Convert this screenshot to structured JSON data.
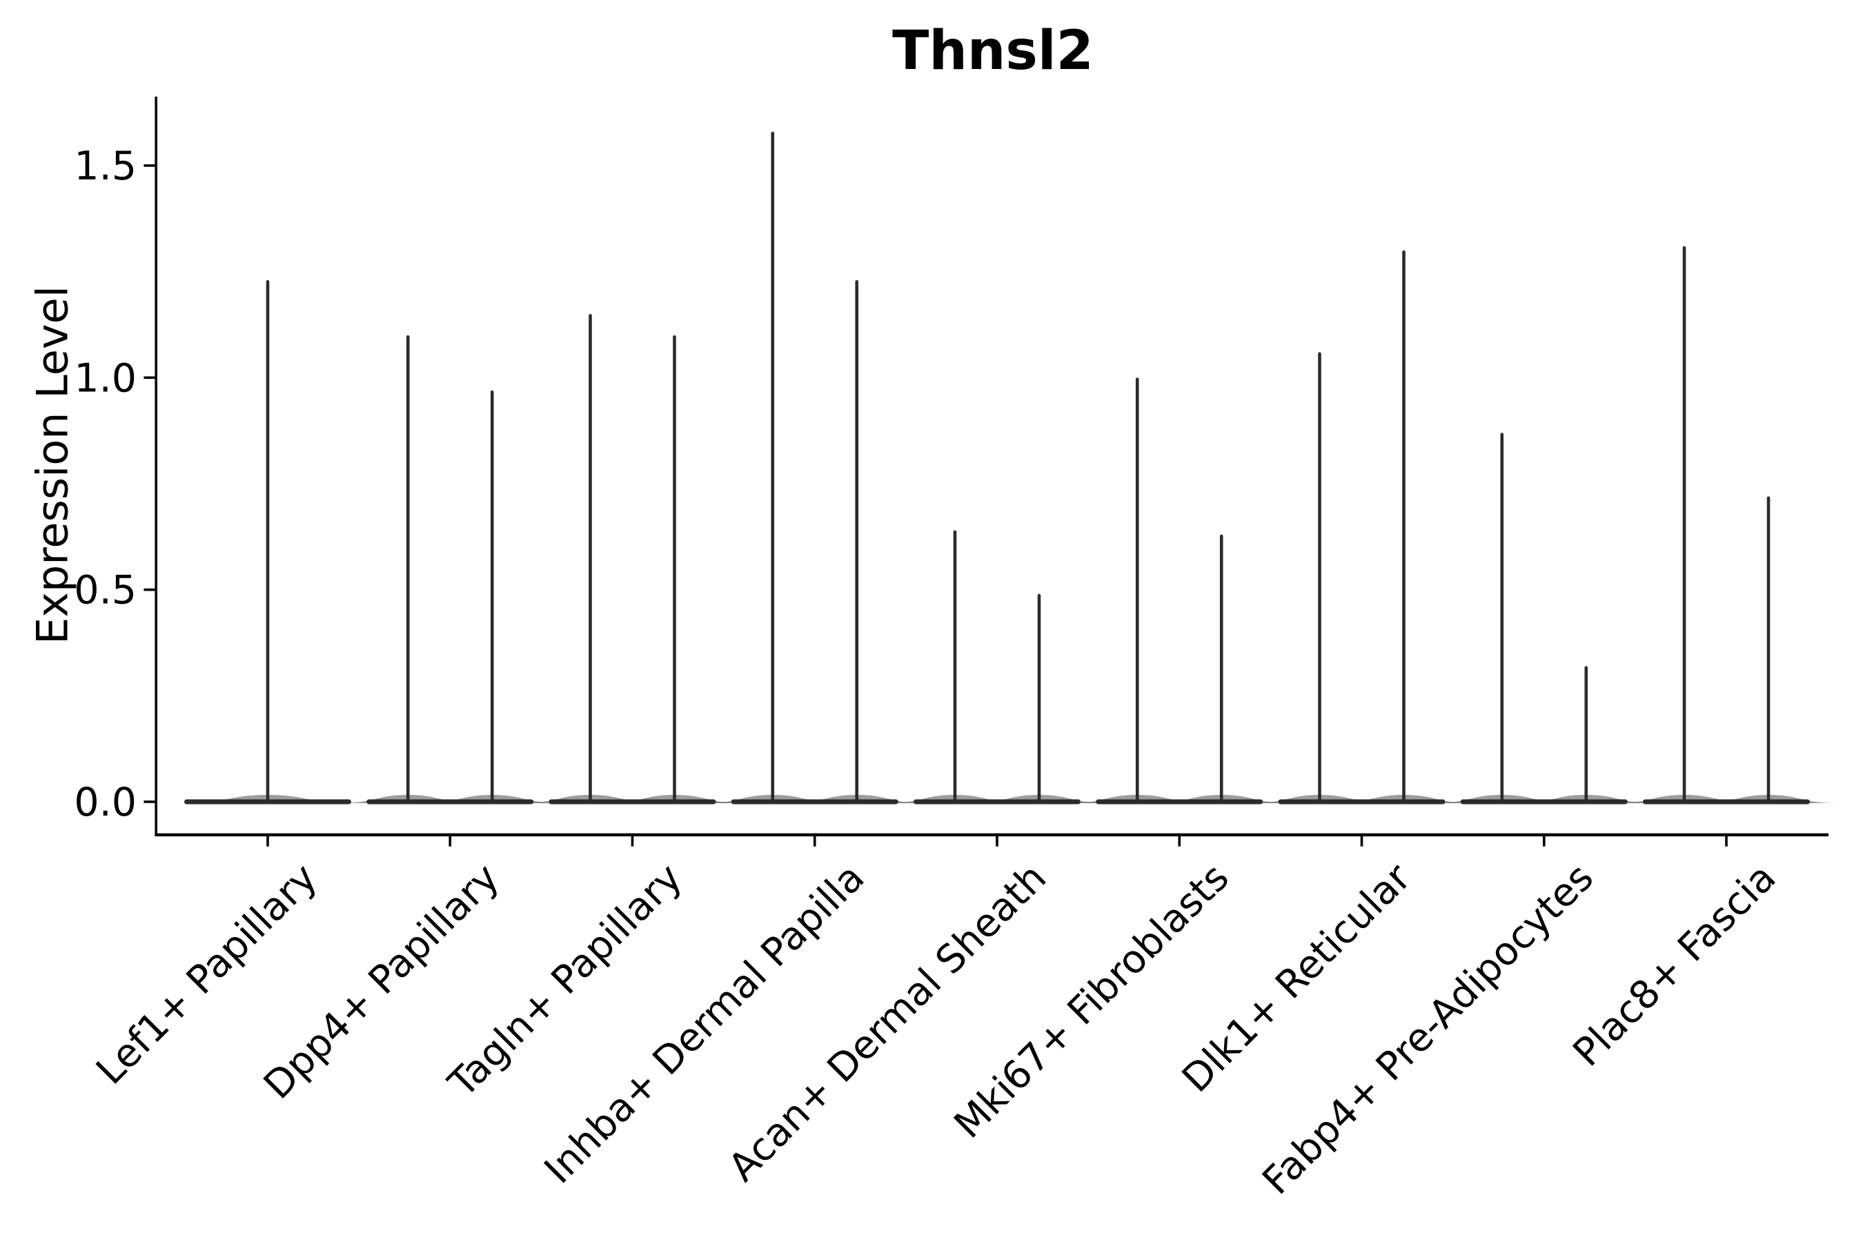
{
  "figure": {
    "background": "#ffffff"
  },
  "chart_data": {
    "type": "violin",
    "title": "Thnsl2",
    "ylabel": "Expression Level",
    "xlabel": "",
    "ytick_labels": [
      "0.0",
      "0.5",
      "1.0",
      "1.5"
    ],
    "ytick_values": [
      0.0,
      0.5,
      1.0,
      1.5
    ],
    "ylim": [
      -0.07,
      1.66
    ],
    "grid": false,
    "legend": "none",
    "colors": {
      "violin": "#2b2b2b",
      "violin_fill": "#4d4d4d",
      "axis": "#000000",
      "text": "#000000",
      "background": "#ffffff"
    },
    "categories": [
      "Lef1+ Papillary",
      "Dpp4+ Papillary",
      "Tagln+ Papillary",
      "Inhba+ Dermal Papilla",
      "Acan+ Dermal Sheath",
      "Mki67+ Fibroblasts",
      "Dlk1+ Reticular",
      "Fabp4+ Pre-Adipocytes",
      "Plac8+ Fascia"
    ],
    "groups": [
      {
        "label": "Lef1+ Papillary",
        "violins": [
          {
            "pos": "center",
            "max": 1.23
          }
        ]
      },
      {
        "label": "Dpp4+ Papillary",
        "violins": [
          {
            "pos": "left",
            "max": 1.1
          },
          {
            "pos": "right",
            "max": 0.97
          }
        ]
      },
      {
        "label": "Tagln+ Papillary",
        "violins": [
          {
            "pos": "left",
            "max": 1.15
          },
          {
            "pos": "right",
            "max": 1.1
          }
        ]
      },
      {
        "label": "Inhba+ Dermal Papilla",
        "violins": [
          {
            "pos": "left",
            "max": 1.58
          },
          {
            "pos": "right",
            "max": 1.23
          }
        ]
      },
      {
        "label": "Acan+ Dermal Sheath",
        "violins": [
          {
            "pos": "left",
            "max": 0.64
          },
          {
            "pos": "right",
            "max": 0.49
          }
        ]
      },
      {
        "label": "Mki67+ Fibroblasts",
        "violins": [
          {
            "pos": "left",
            "max": 1.0
          },
          {
            "pos": "right",
            "max": 0.63
          }
        ]
      },
      {
        "label": "Dlk1+ Reticular",
        "violins": [
          {
            "pos": "left",
            "max": 1.06
          },
          {
            "pos": "right",
            "max": 1.3
          }
        ]
      },
      {
        "label": "Fabp4+ Pre-Adipocytes",
        "violins": [
          {
            "pos": "left",
            "max": 0.87
          },
          {
            "pos": "right",
            "max": 0.32
          }
        ]
      },
      {
        "label": "Plac8+ Fascia",
        "violins": [
          {
            "pos": "left",
            "max": 1.31
          },
          {
            "pos": "right",
            "max": 0.72
          }
        ]
      }
    ],
    "description": "Each violin is a flat density pancake at 0 expression with a thin vertical spike reaching the maximum expression value."
  }
}
